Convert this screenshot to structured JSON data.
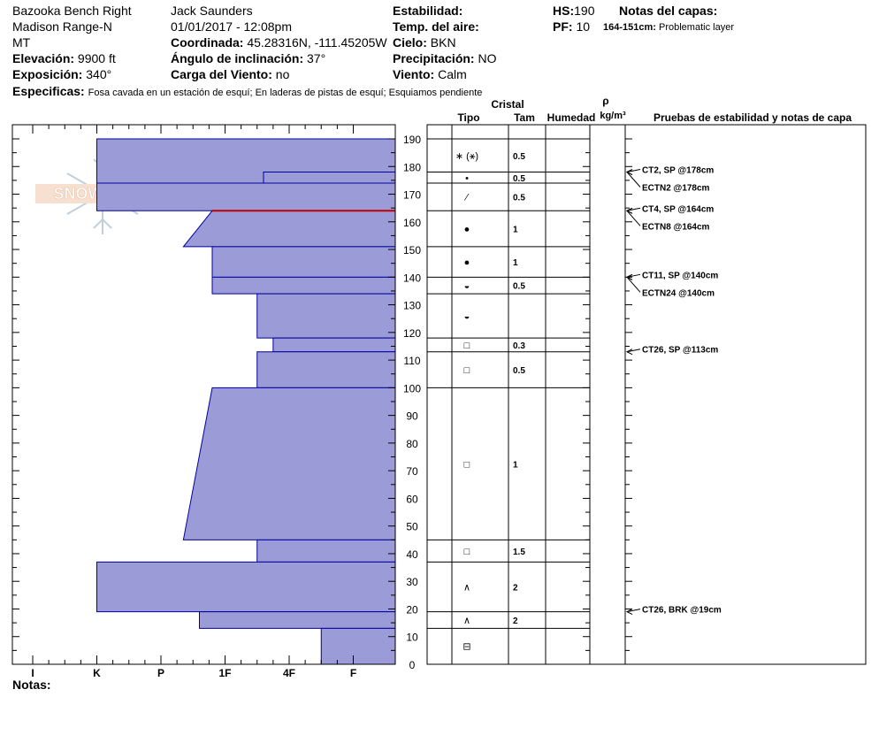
{
  "header": {
    "location": "Bazooka Bench Right",
    "range": "Madison Range-N",
    "state": "MT",
    "elevation_label": "Elevación:",
    "elevation": "9900 ft",
    "aspect_label": "Exposición:",
    "aspect": "340°",
    "observer": "Jack Saunders",
    "datetime": "01/01/2017 - 12:08pm",
    "coord_label": "Coordinada:",
    "coord": "45.28316N, -111.45205W",
    "slope_label": "Ángulo de inclinación:",
    "slope": "37°",
    "wind_load_label": "Carga del Viento:",
    "wind_load": "no",
    "stability_label": "Estabilidad:",
    "airtemp_label": "Temp. del aire:",
    "sky_label": "Cielo:",
    "sky": "BKN",
    "precip_label": "Precipitación:",
    "precip": "NO",
    "wind_label": "Viento:",
    "wind": "Calm",
    "hs_label": "HS:",
    "hs": "190",
    "pf_label": "PF:",
    "pf": "10",
    "layer_notes_label": "Notas del capas:",
    "layer_note_depth": "164-151cm:",
    "layer_note_text": "Problematic layer",
    "specifics_label": "Especificas:",
    "specifics": "Fosa cavada en un estación de esquí; En laderas de pistas de esquí; Esquiamos pendiente",
    "notes_label": "Notas:"
  },
  "colors": {
    "fill": "#9b9bd7",
    "edge": "#0000a0",
    "red": "#c00000"
  },
  "chart_data": {
    "type": "bar",
    "title": "",
    "xlabel": "",
    "ylabel": "",
    "hardness_ticks": [
      "I",
      "K",
      "P",
      "1F",
      "4F",
      "F"
    ],
    "height_ticks": [
      0,
      10,
      20,
      30,
      40,
      50,
      60,
      70,
      80,
      90,
      100,
      110,
      120,
      130,
      140,
      150,
      160,
      170,
      180,
      190
    ],
    "ylim": [
      0,
      190
    ],
    "hardness_profile": [
      {
        "top": 190,
        "bottom": 174,
        "hardness": 1.0
      },
      {
        "top": 178,
        "bottom": 174,
        "hardness": 3.6
      },
      {
        "top": 174,
        "bottom": 164,
        "hardness": 1.0
      },
      {
        "top": 164,
        "bottom": 151,
        "hardness_top": 2.8,
        "hardness_bottom": 2.35
      },
      {
        "top": 151,
        "bottom": 140,
        "hardness": 2.8
      },
      {
        "top": 140,
        "bottom": 134,
        "hardness": 2.8
      },
      {
        "top": 134,
        "bottom": 118,
        "hardness": 3.5
      },
      {
        "top": 118,
        "bottom": 113,
        "hardness": 3.75
      },
      {
        "top": 113,
        "bottom": 100,
        "hardness": 3.5
      },
      {
        "top": 100,
        "bottom": 45,
        "hardness_top": 2.8,
        "hardness_bottom": 2.35
      },
      {
        "top": 45,
        "bottom": 37,
        "hardness": 3.5
      },
      {
        "top": 37,
        "bottom": 19,
        "hardness": 1.0
      },
      {
        "top": 19,
        "bottom": 13,
        "hardness": 2.6
      },
      {
        "top": 13,
        "bottom": 0,
        "hardness": 4.5
      }
    ],
    "red_line_height": 164
  },
  "table": {
    "header_cristal": "Cristal",
    "header_tipo": "Tipo",
    "header_tam": "Tam",
    "header_humedad": "Humedad",
    "header_rho": "ρ",
    "header_density_unit": "kg/m³",
    "header_tests": "Pruebas de estabilidad y notas de capa",
    "layers": [
      {
        "top": 190,
        "bottom": 178,
        "symbol": "∗ (⚹)",
        "size": "0.5"
      },
      {
        "top": 178,
        "bottom": 174,
        "symbol": "•",
        "size": "0.5"
      },
      {
        "top": 174,
        "bottom": 164,
        "symbol": "⁄",
        "size": "0.5"
      },
      {
        "top": 164,
        "bottom": 151,
        "symbol": "●",
        "size": "1"
      },
      {
        "top": 151,
        "bottom": 140,
        "symbol": "●",
        "size": "1"
      },
      {
        "top": 140,
        "bottom": 134,
        "symbol": "◒",
        "size": "0.5"
      },
      {
        "top": 134,
        "bottom": 118,
        "symbol": "◒",
        "size": ""
      },
      {
        "top": 118,
        "bottom": 113,
        "symbol": "□",
        "size": "0.3"
      },
      {
        "top": 113,
        "bottom": 100,
        "symbol": "□",
        "size": "0.5"
      },
      {
        "top": 100,
        "bottom": 45,
        "symbol": "□",
        "size": "1"
      },
      {
        "top": 45,
        "bottom": 37,
        "symbol": "□",
        "size": "1.5"
      },
      {
        "top": 37,
        "bottom": 19,
        "symbol": "∧",
        "size": "2"
      },
      {
        "top": 19,
        "bottom": 13,
        "symbol": "∧",
        "size": "2"
      },
      {
        "top": 13,
        "bottom": 0,
        "symbol": "⊟",
        "size": ""
      }
    ],
    "tests": [
      {
        "height": 178,
        "label": "CT2, SP @178cm"
      },
      {
        "height": 178,
        "label": "ECTN2 @178cm"
      },
      {
        "height": 164,
        "label": "CT4, SP @164cm"
      },
      {
        "height": 164,
        "label": "ECTN8 @164cm"
      },
      {
        "height": 140,
        "label": "CT11, SP @140cm"
      },
      {
        "height": 140,
        "label": "ECTN24 @140cm"
      },
      {
        "height": 113,
        "label": "CT26, SP @113cm"
      },
      {
        "height": 19,
        "label": "CT26, BRK @19cm"
      }
    ]
  },
  "logo_text": "SNOWPILOT"
}
